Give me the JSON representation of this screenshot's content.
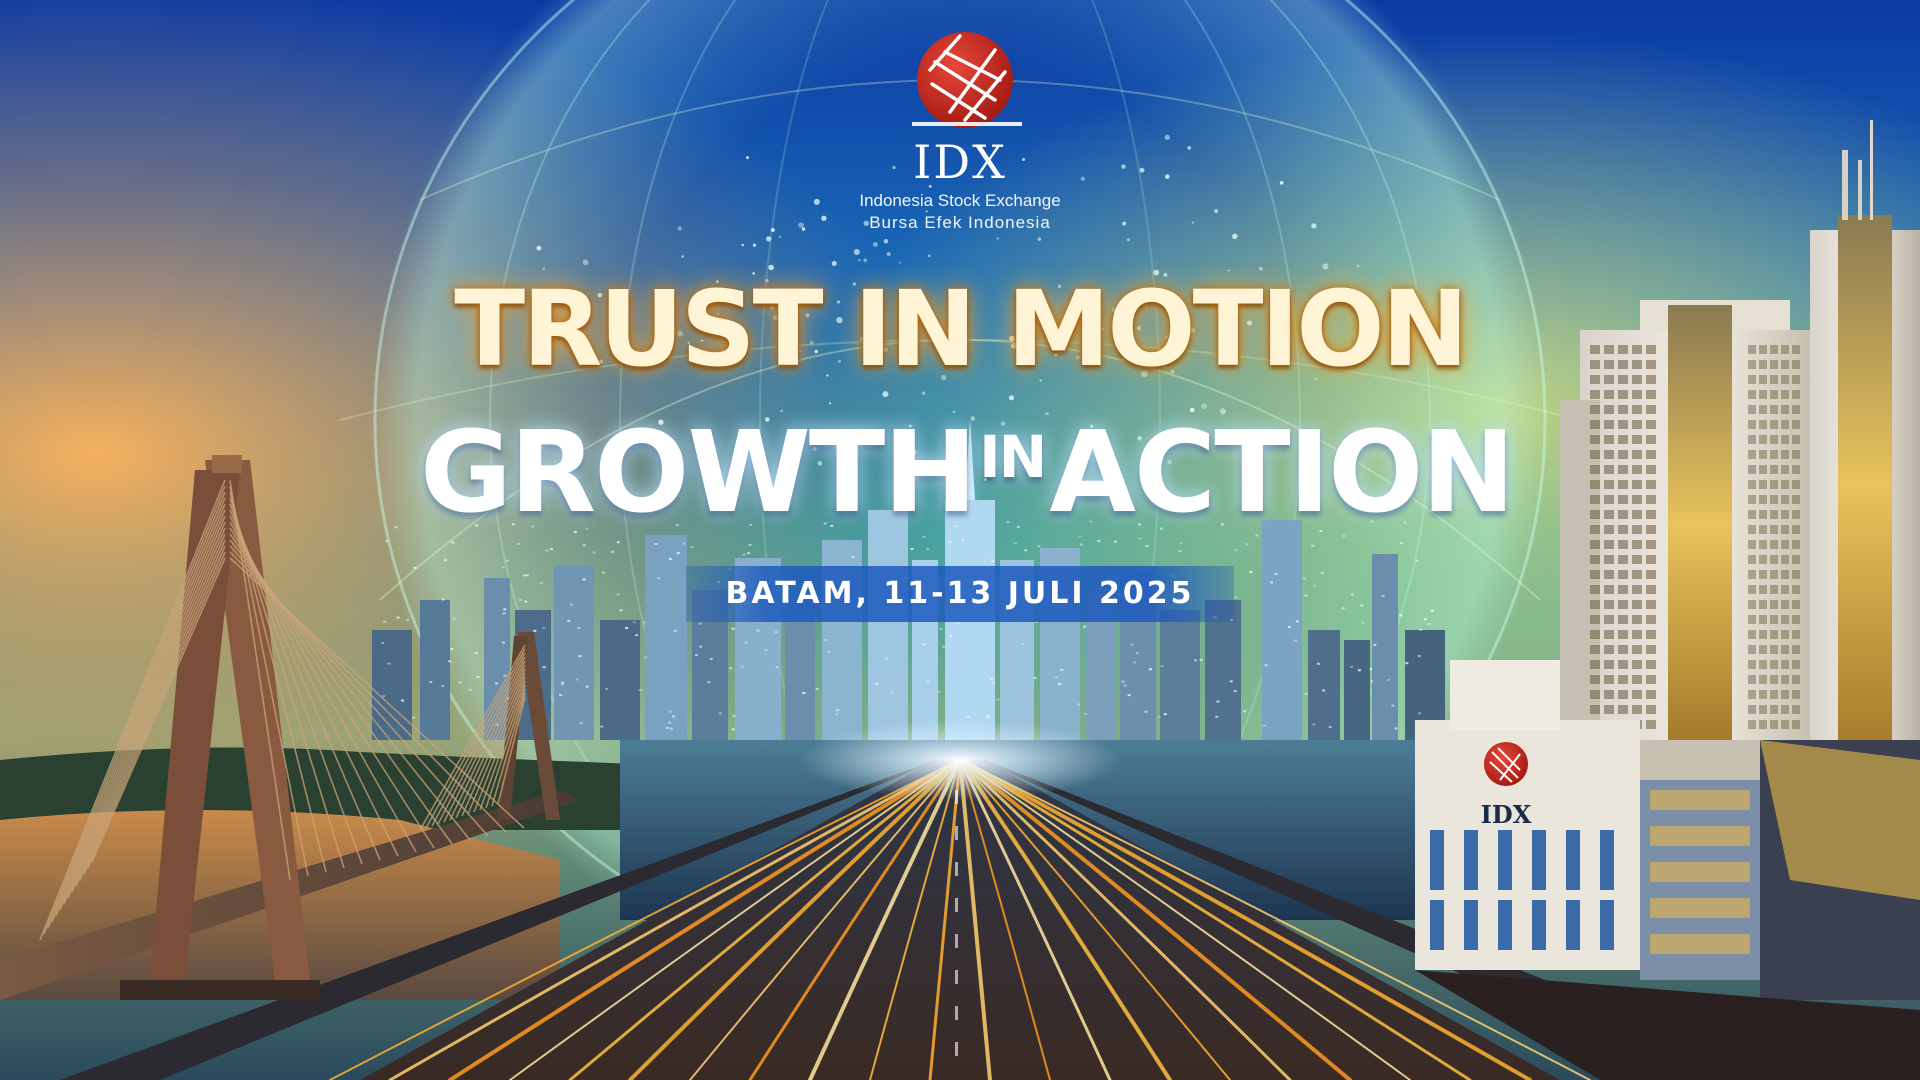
{
  "logo": {
    "wordmark": "IDX",
    "line1": "Indonesia Stock Exchange",
    "line2": "Bursa  Efek  Indonesia"
  },
  "headline": {
    "line1": "TRUST IN MOTION",
    "line2_lead": "GROWTH",
    "line2_in": "IN",
    "line2_tail": "ACTION"
  },
  "event": {
    "date_location": "BATAM, 11-13 JULI 2025"
  },
  "building_sign": {
    "wordmark": "IDX"
  },
  "colors": {
    "sky_top": "#0a3da8",
    "sky_mid": "#1f8fa8",
    "sunset": "#f0a44c",
    "headline_gold": "#fff4d6",
    "logo_red": "#c8261c",
    "date_bar": "#1e5abe",
    "road_light": "#ffb030"
  }
}
